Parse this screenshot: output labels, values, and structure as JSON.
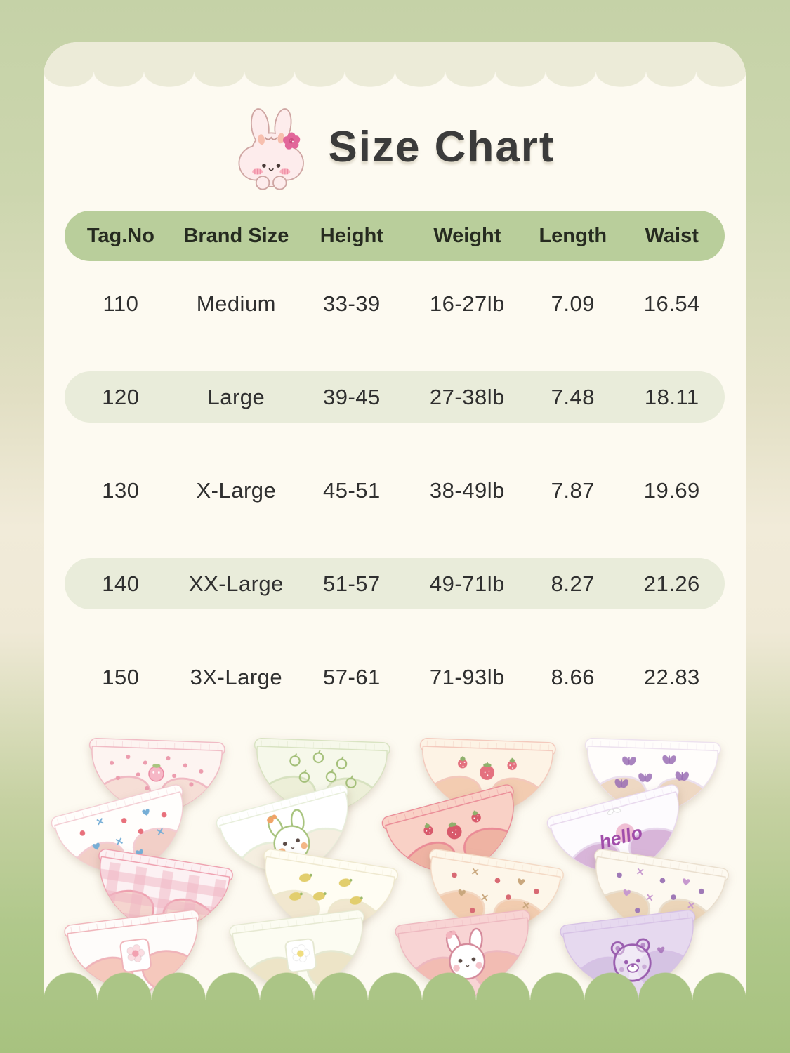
{
  "header": {
    "title": "Size Chart",
    "icon": "bunny-with-flower"
  },
  "palette": {
    "bg_green_top": "#c5d2a7",
    "bg_cream_mid": "#f1ebd9",
    "bg_green_bottom": "#a7c27f",
    "card_bg": "#fdfaf1",
    "scallop_band": "#ecebd8",
    "scallop_green": "#abc586",
    "table_header_bg": "#b9ce9b",
    "row_highlight_bg": "#e9ecda",
    "text": "#2f2f2f",
    "title_text": "#3b3b3b"
  },
  "table": {
    "columns": [
      "Tag.No",
      "Brand Size",
      "Height",
      "Weight",
      "Length",
      "Waist"
    ],
    "rows": [
      {
        "cells": [
          "110",
          "Medium",
          "33-39",
          "16-27lb",
          "7.09",
          "16.54"
        ],
        "highlight": false
      },
      {
        "cells": [
          "120",
          "Large",
          "39-45",
          "27-38lb",
          "7.48",
          "18.11"
        ],
        "highlight": true
      },
      {
        "cells": [
          "130",
          "X-Large",
          "45-51",
          "38-49lb",
          "7.87",
          "19.69"
        ],
        "highlight": false
      },
      {
        "cells": [
          "140",
          "XX-Large",
          "51-57",
          "49-71lb",
          "8.27",
          "21.26"
        ],
        "highlight": true
      },
      {
        "cells": [
          "150",
          "3X-Large",
          "57-61",
          "71-93lb",
          "8.66",
          "22.83"
        ],
        "highlight": false
      }
    ]
  },
  "products": {
    "groups": [
      {
        "name": "pink-briefs-stack",
        "briefs": [
          {
            "base": "#fdf4f1",
            "trim": "#f0b9c3",
            "inner": "#f6ded6",
            "motif": "dots",
            "mc": "#ec9cae",
            "mc2": "#f6b7c6"
          },
          {
            "base": "#fffefc",
            "trim": "#f3ccd2",
            "inner": "#f2cfc7",
            "motif": "scatter",
            "mc": "#e8707b",
            "mc2": "#76aed6"
          },
          {
            "base": "#fcf1f3",
            "trim": "#ee9fae",
            "inner": "#f5d5cf",
            "motif": "check",
            "mc": "#f0b5c4"
          },
          {
            "base": "#fefcfa",
            "trim": "#efb3b9",
            "inner": "#f5c8bc",
            "motif": "patch",
            "mc": "#f2a0b0",
            "mc2": "#fbdde2"
          }
        ]
      },
      {
        "name": "green-briefs-stack",
        "briefs": [
          {
            "base": "#f6f8ea",
            "trim": "#d7e2c0",
            "inner": "#edefd8",
            "motif": "apples",
            "mc": "#a3bf78"
          },
          {
            "base": "#ffffff",
            "trim": "#e7eeda",
            "inner": "#f5eee0",
            "motif": "bunny",
            "mc": "#a7c37d",
            "mc2": "#f0a468"
          },
          {
            "base": "#fffdf3",
            "trim": "#eee8ce",
            "inner": "#f1e7cf",
            "motif": "lemons",
            "mc": "#e2ce6d",
            "mc2": "#9cb96a"
          },
          {
            "base": "#fcfcf2",
            "trim": "#e5e8d1",
            "inner": "#ede4c7",
            "motif": "patch",
            "mc": "#f0dd7e",
            "mc2": "#ffffff"
          }
        ]
      },
      {
        "name": "peach-briefs-stack",
        "briefs": [
          {
            "base": "#fdf3e5",
            "trim": "#f3c8bb",
            "inner": "#f3ccb1",
            "motif": "fruit",
            "mc": "#e4717f",
            "mc2": "#8fb06c"
          },
          {
            "base": "#f9d1c6",
            "trim": "#ea8b96",
            "inner": "#efb3a3",
            "motif": "fruit",
            "mc": "#d8596b",
            "mc2": "#8fb06c"
          },
          {
            "base": "#fdf6e9",
            "trim": "#f3d8c3",
            "inner": "#f2ccaf",
            "motif": "scatter",
            "mc": "#d86973",
            "mc2": "#c9a77d"
          },
          {
            "base": "#f8d4d4",
            "trim": "#edb8bf",
            "inner": "#f2bcb3",
            "motif": "bunny",
            "mc": "#d4899a",
            "mc2": "#f3b5be"
          }
        ]
      },
      {
        "name": "purple-briefs-stack",
        "briefs": [
          {
            "base": "#fffdfb",
            "trim": "#ece0ee",
            "inner": "#eed8c3",
            "motif": "butterflies",
            "mc": "#9a6eb4"
          },
          {
            "base": "#fdfbfe",
            "trim": "#e8d8ed",
            "inner": "#d8b5d9",
            "motif": "text",
            "mc": "#a14daa",
            "label": "hello"
          },
          {
            "base": "#fdf9f0",
            "trim": "#e9decd",
            "inner": "#ebd5b9",
            "motif": "scatter",
            "mc": "#9f79b7",
            "mc2": "#c799cf"
          },
          {
            "base": "#e6d9ef",
            "trim": "#d6c1e5",
            "inner": "#d5c3e3",
            "motif": "bear",
            "mc": "#9a5eaf"
          }
        ]
      }
    ]
  }
}
